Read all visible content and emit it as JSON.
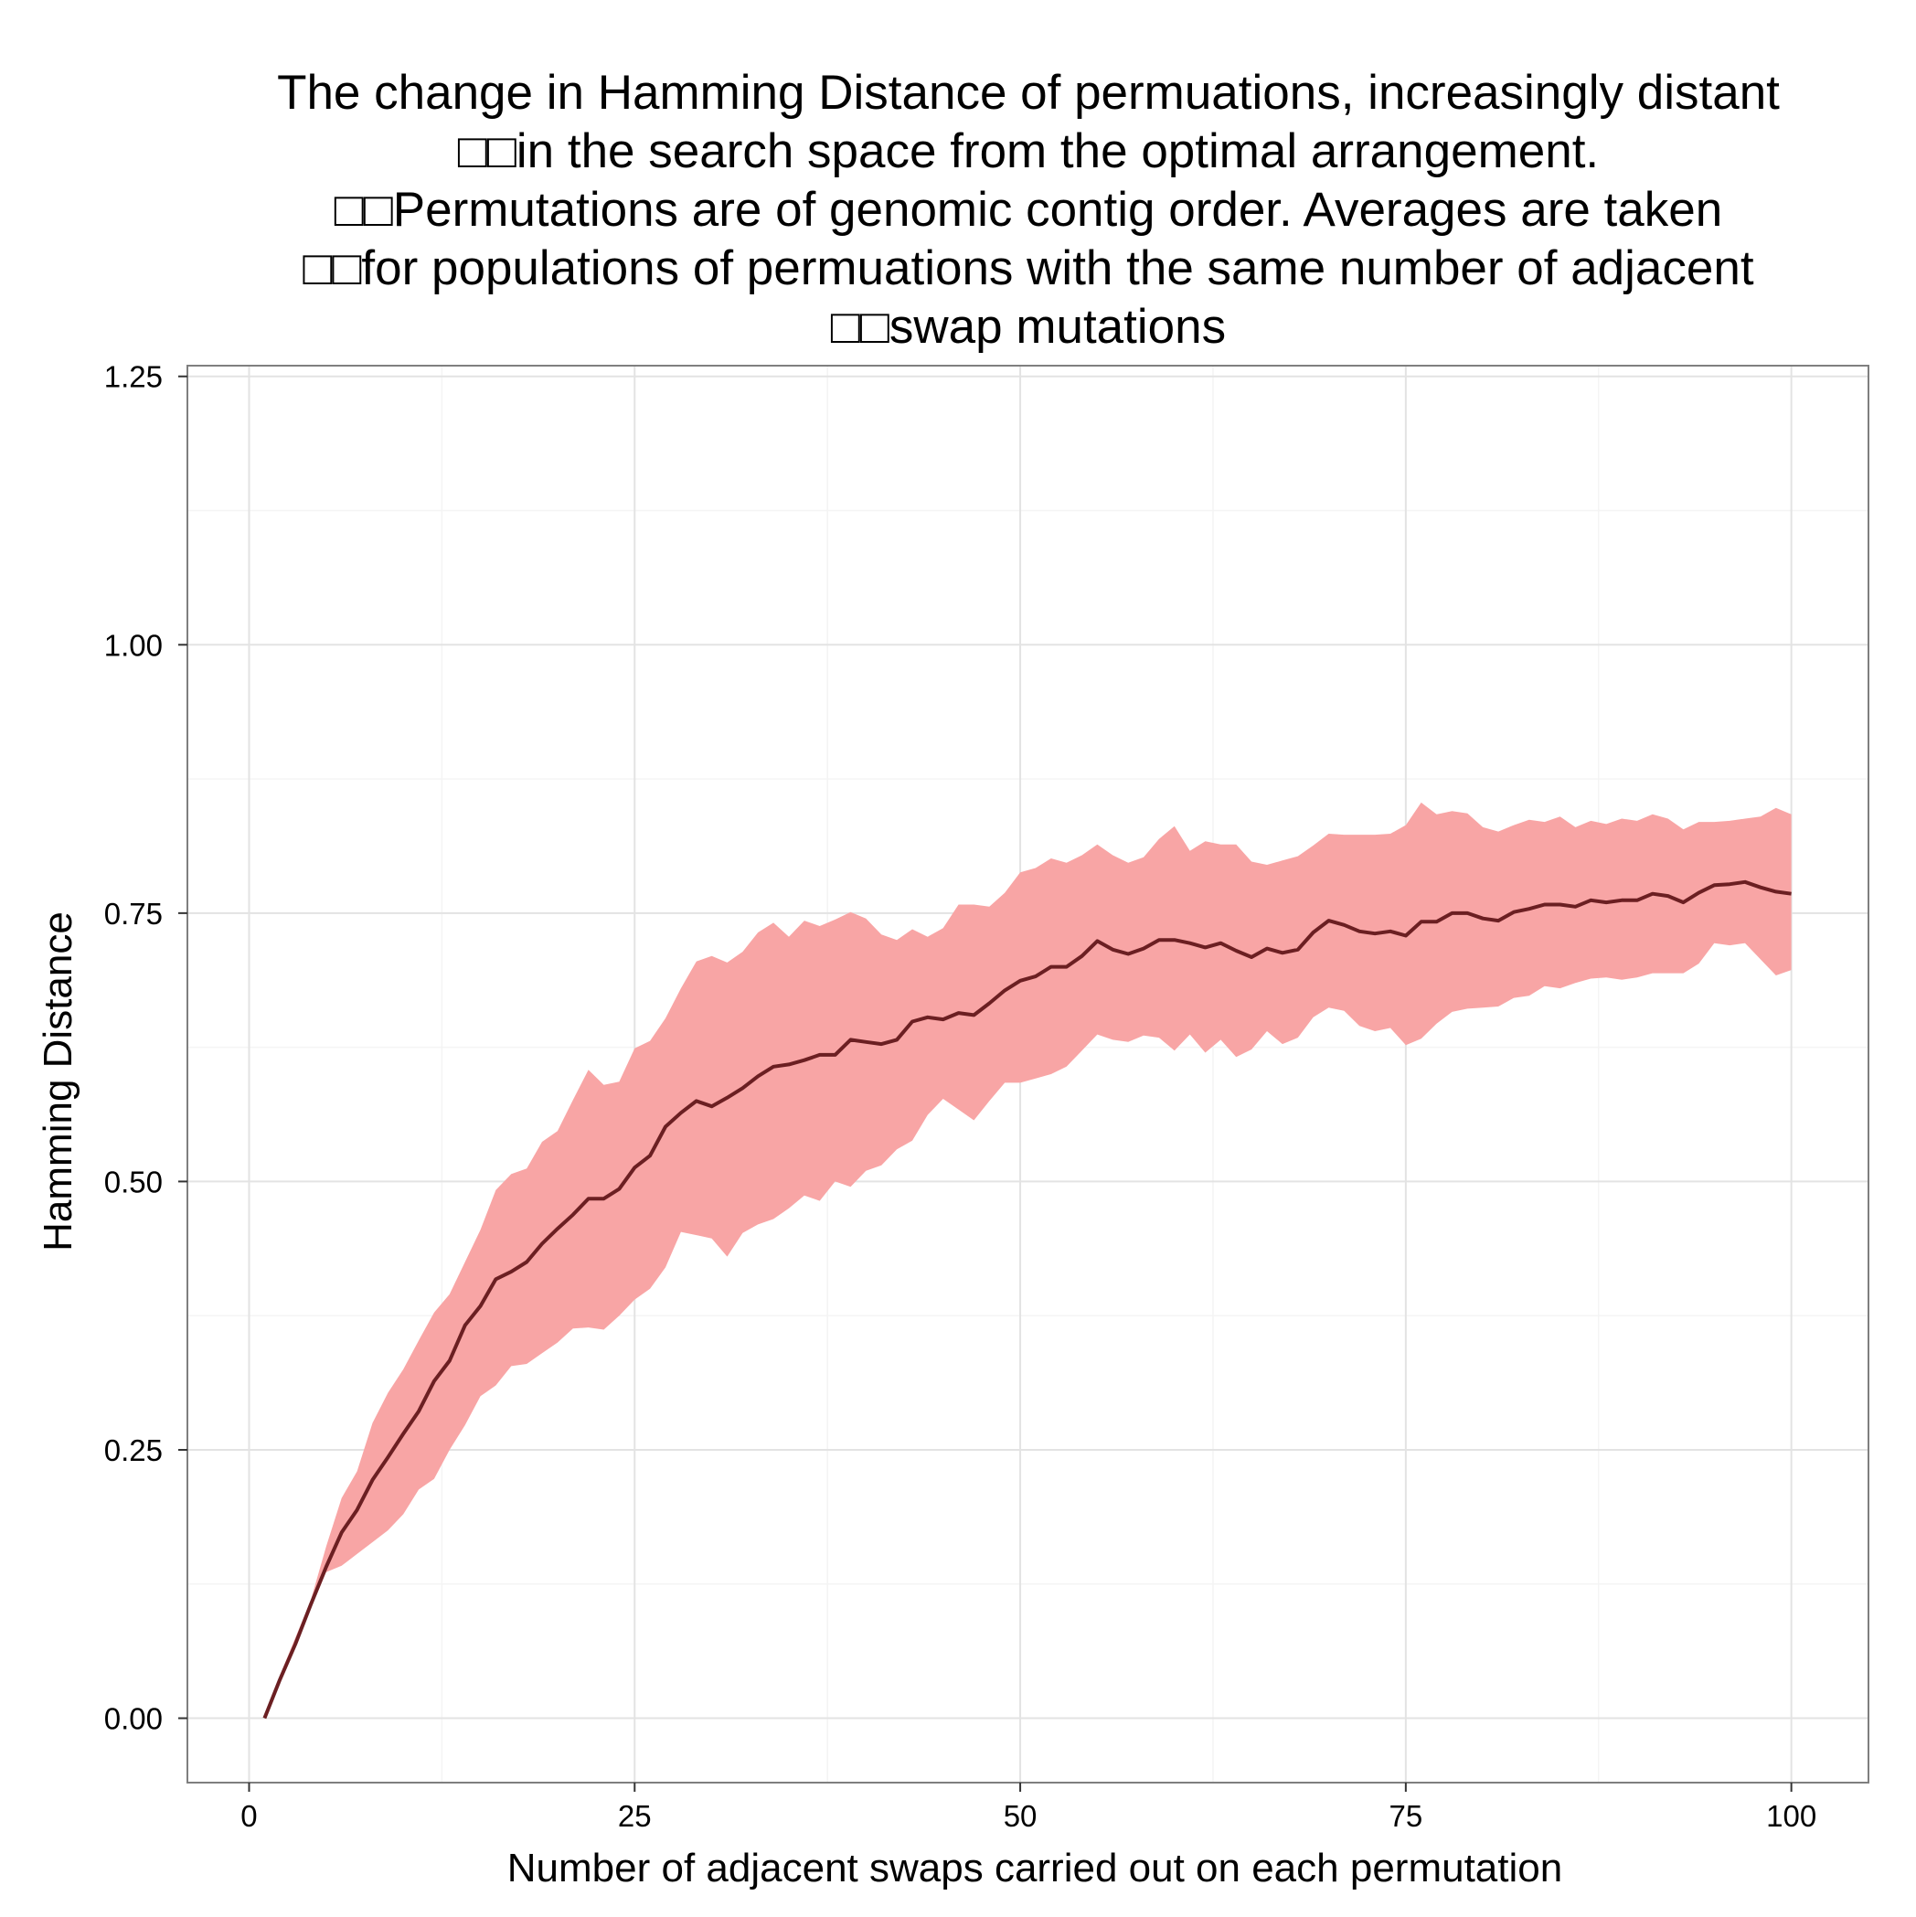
{
  "chart_data": {
    "type": "line",
    "title_lines": [
      "The change in Hamming Distance of permuations, increasingly distant",
      "□□in the search space from the optimal arrangement.",
      "□□Permutations are of genomic contig order. Averages are taken",
      "□□for populations of permuations with the same number of adjacent",
      "□□swap mutations"
    ],
    "xlabel": "Number of adjacent swaps carried out on each permutation",
    "ylabel": "Hamming Distance",
    "xlim": [
      -4,
      105
    ],
    "ylim": [
      -0.06,
      1.26
    ],
    "x_ticks": [
      0,
      25,
      50,
      75,
      100
    ],
    "x_tick_labels": [
      "0",
      "25",
      "50",
      "75",
      "100"
    ],
    "y_ticks": [
      0,
      0.25,
      0.5,
      0.75,
      1.0,
      1.25
    ],
    "y_tick_labels": [
      "0.00",
      "0.25",
      "0.50",
      "0.75",
      "1.00",
      "1.25"
    ],
    "grid": true,
    "legend": "none",
    "colors": {
      "ribbon": "#f8a5a5",
      "line": "#6b1f22",
      "background": "#ffffff"
    },
    "series": [
      {
        "x": [
          1,
          2,
          3,
          4,
          5,
          6,
          7,
          8,
          9,
          10,
          11,
          12,
          13,
          14,
          15,
          16,
          17,
          18,
          19,
          20,
          21,
          22,
          23,
          24,
          25,
          26,
          27,
          28,
          29,
          30,
          31,
          32,
          33,
          34,
          35,
          36,
          37,
          38,
          39,
          40,
          41,
          42,
          43,
          44,
          45,
          46,
          47,
          48,
          49,
          50,
          51,
          52,
          53,
          54,
          55,
          56,
          57,
          58,
          59,
          60,
          61,
          62,
          63,
          64,
          65,
          66,
          67,
          68,
          69,
          70,
          71,
          72,
          73,
          74,
          75,
          76,
          77,
          78,
          79,
          80,
          81,
          82,
          83,
          84,
          85,
          86,
          87,
          88,
          89,
          90,
          91,
          92,
          93,
          94,
          95,
          96,
          97,
          98,
          99,
          100
        ],
        "mean": [
          0.0,
          0.036,
          0.069,
          0.106,
          0.141,
          0.173,
          0.194,
          0.222,
          0.243,
          0.265,
          0.286,
          0.314,
          0.333,
          0.366,
          0.384,
          0.409,
          0.416,
          0.425,
          0.442,
          0.456,
          0.469,
          0.484,
          0.484,
          0.493,
          0.513,
          0.524,
          0.551,
          0.564,
          0.575,
          0.57,
          0.578,
          0.587,
          0.598,
          0.607,
          0.609,
          0.613,
          0.618,
          0.618,
          0.632,
          0.63,
          0.628,
          0.632,
          0.649,
          0.653,
          0.651,
          0.657,
          0.655,
          0.666,
          0.678,
          0.687,
          0.691,
          0.7,
          0.7,
          0.71,
          0.724,
          0.716,
          0.712,
          0.717,
          0.725,
          0.725,
          0.722,
          0.718,
          0.722,
          0.715,
          0.709,
          0.717,
          0.713,
          0.716,
          0.732,
          0.743,
          0.739,
          0.733,
          0.731,
          0.733,
          0.729,
          0.742,
          0.742,
          0.75,
          0.75,
          0.745,
          0.743,
          0.751,
          0.754,
          0.758,
          0.758,
          0.756,
          0.762,
          0.76,
          0.762,
          0.762,
          0.768,
          0.766,
          0.76,
          0.769,
          0.776,
          0.777,
          0.779,
          0.774,
          0.77,
          0.768
        ],
        "upper": [
          0.0,
          0.04,
          0.075,
          0.11,
          0.16,
          0.205,
          0.23,
          0.275,
          0.303,
          0.325,
          0.352,
          0.378,
          0.395,
          0.425,
          0.455,
          0.492,
          0.507,
          0.512,
          0.537,
          0.547,
          0.576,
          0.604,
          0.59,
          0.593,
          0.624,
          0.631,
          0.652,
          0.68,
          0.705,
          0.71,
          0.704,
          0.714,
          0.732,
          0.741,
          0.728,
          0.743,
          0.738,
          0.744,
          0.751,
          0.745,
          0.73,
          0.725,
          0.735,
          0.728,
          0.736,
          0.758,
          0.758,
          0.756,
          0.769,
          0.788,
          0.792,
          0.801,
          0.797,
          0.804,
          0.814,
          0.804,
          0.797,
          0.802,
          0.819,
          0.831,
          0.808,
          0.817,
          0.814,
          0.814,
          0.798,
          0.795,
          0.799,
          0.803,
          0.813,
          0.824,
          0.823,
          0.823,
          0.823,
          0.824,
          0.832,
          0.853,
          0.842,
          0.845,
          0.843,
          0.83,
          0.826,
          0.832,
          0.837,
          0.835,
          0.84,
          0.83,
          0.836,
          0.833,
          0.838,
          0.836,
          0.842,
          0.838,
          0.828,
          0.835,
          0.835,
          0.836,
          0.838,
          0.84,
          0.848,
          0.842
        ],
        "lower": [
          0.0,
          0.034,
          0.067,
          0.102,
          0.136,
          0.142,
          0.153,
          0.164,
          0.175,
          0.19,
          0.213,
          0.223,
          0.25,
          0.273,
          0.3,
          0.31,
          0.328,
          0.33,
          0.34,
          0.35,
          0.363,
          0.364,
          0.362,
          0.375,
          0.39,
          0.4,
          0.42,
          0.453,
          0.45,
          0.447,
          0.43,
          0.452,
          0.46,
          0.465,
          0.475,
          0.487,
          0.482,
          0.5,
          0.495,
          0.51,
          0.515,
          0.53,
          0.538,
          0.562,
          0.577,
          0.567,
          0.557,
          0.575,
          0.592,
          0.592,
          0.596,
          0.6,
          0.607,
          0.622,
          0.637,
          0.632,
          0.63,
          0.636,
          0.634,
          0.622,
          0.637,
          0.62,
          0.632,
          0.616,
          0.623,
          0.64,
          0.628,
          0.634,
          0.653,
          0.662,
          0.659,
          0.645,
          0.64,
          0.643,
          0.627,
          0.633,
          0.647,
          0.658,
          0.661,
          0.662,
          0.663,
          0.671,
          0.673,
          0.682,
          0.68,
          0.685,
          0.689,
          0.69,
          0.688,
          0.69,
          0.694,
          0.694,
          0.694,
          0.703,
          0.722,
          0.72,
          0.722,
          0.707,
          0.692,
          0.697
        ]
      }
    ]
  }
}
